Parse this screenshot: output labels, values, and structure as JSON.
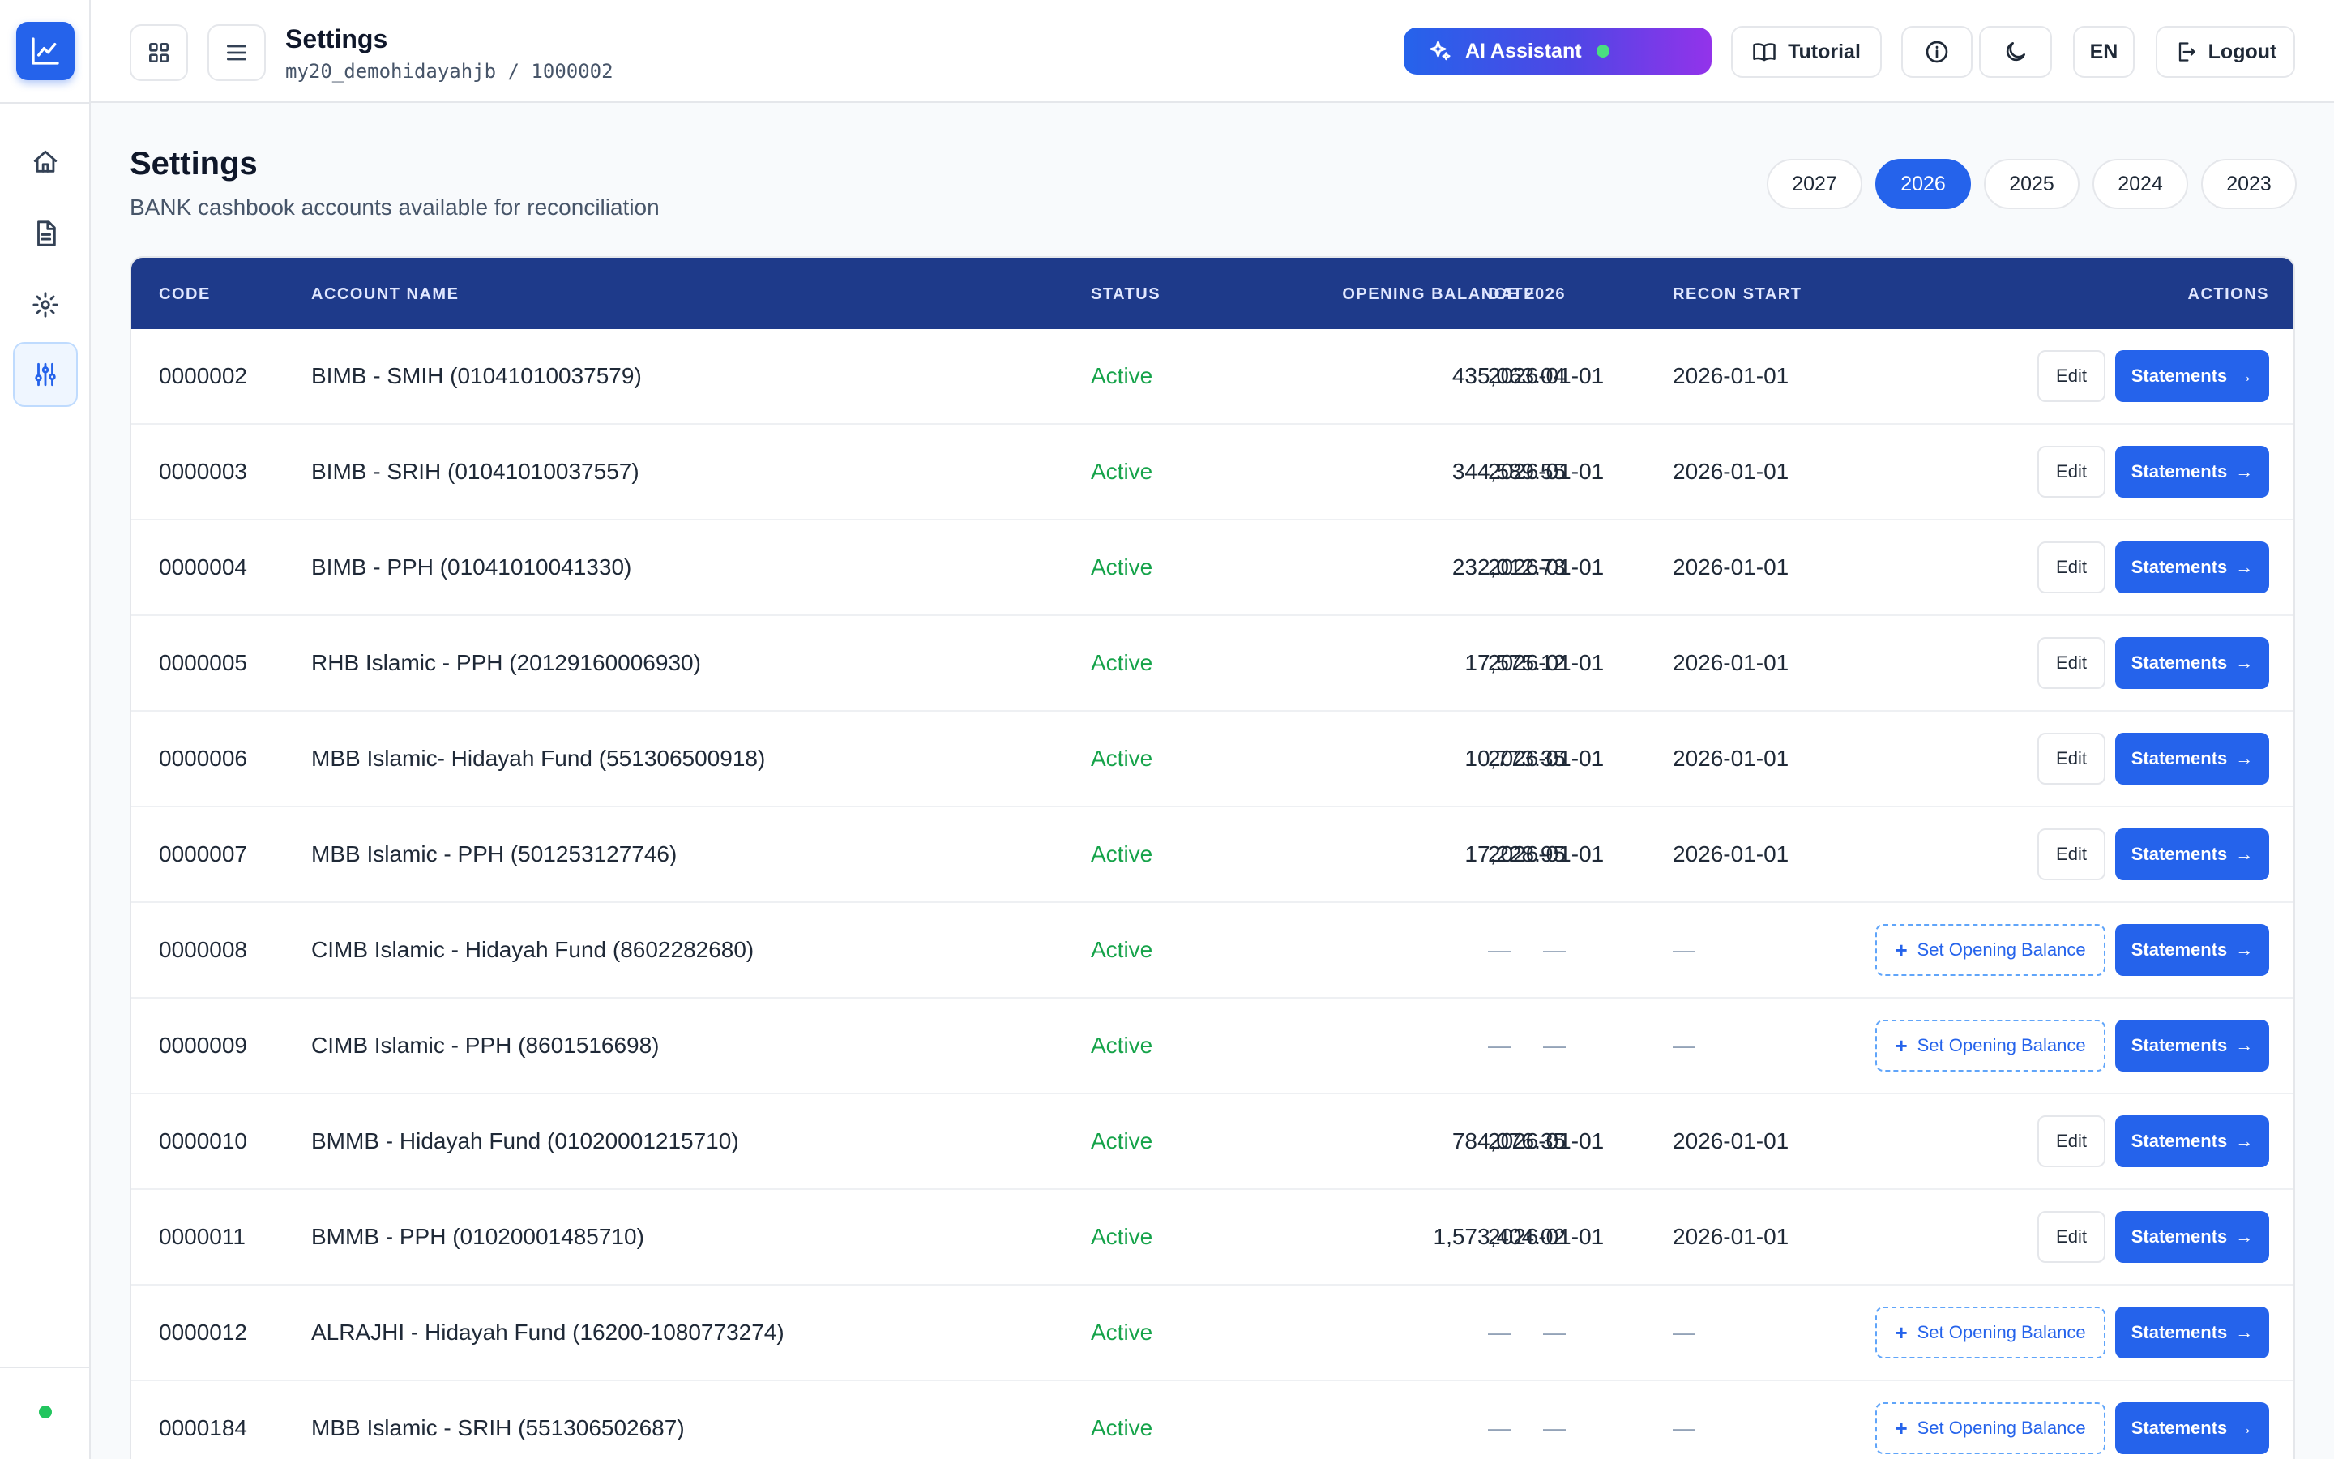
{
  "header": {
    "title": "Settings",
    "subtitle": "my20_demohidayahjb / 1000002",
    "ai_assistant_label": "AI Assistant",
    "tutorial_label": "Tutorial",
    "language_label": "EN",
    "logout_label": "Logout"
  },
  "page": {
    "title": "Settings",
    "subtitle": "BANK cashbook accounts available for reconciliation",
    "years": [
      "2027",
      "2026",
      "2025",
      "2024",
      "2023"
    ],
    "selected_year": "2026"
  },
  "table": {
    "columns": [
      "CODE",
      "ACCOUNT NAME",
      "STATUS",
      "OPENING BALANCE 2026",
      "DATE",
      "RECON START",
      "ACTIONS"
    ],
    "edit_label": "Edit",
    "statements_label": "Statements",
    "set_opening_label": "Set Opening Balance",
    "rows": [
      {
        "code": "0000002",
        "name": "BIMB - SMIH (01041010037579)",
        "status": "Active",
        "balance": "435,063.04",
        "date": "2026-01-01",
        "recon": "2026-01-01",
        "has_balance": true
      },
      {
        "code": "0000003",
        "name": "BIMB - SRIH (01041010037557)",
        "status": "Active",
        "balance": "344,589.55",
        "date": "2026-01-01",
        "recon": "2026-01-01",
        "has_balance": true
      },
      {
        "code": "0000004",
        "name": "BIMB - PPH (01041010041330)",
        "status": "Active",
        "balance": "232,012.73",
        "date": "2026-01-01",
        "recon": "2026-01-01",
        "has_balance": true
      },
      {
        "code": "0000005",
        "name": "RHB Islamic - PPH (20129160006930)",
        "status": "Active",
        "balance": "17,575.12",
        "date": "2026-01-01",
        "recon": "2026-01-01",
        "has_balance": true
      },
      {
        "code": "0000006",
        "name": "MBB Islamic- Hidayah Fund (551306500918)",
        "status": "Active",
        "balance": "10,773.35",
        "date": "2026-01-01",
        "recon": "2026-01-01",
        "has_balance": true
      },
      {
        "code": "0000007",
        "name": "MBB Islamic - PPH (501253127746)",
        "status": "Active",
        "balance": "17,228.95",
        "date": "2026-01-01",
        "recon": "2026-01-01",
        "has_balance": true
      },
      {
        "code": "0000008",
        "name": "CIMB Islamic - Hidayah Fund (8602282680)",
        "status": "Active",
        "balance": "—",
        "date": "—",
        "recon": "—",
        "has_balance": false
      },
      {
        "code": "0000009",
        "name": "CIMB Islamic - PPH (8601516698)",
        "status": "Active",
        "balance": "—",
        "date": "—",
        "recon": "—",
        "has_balance": false
      },
      {
        "code": "0000010",
        "name": "BMMB - Hidayah Fund (01020001215710)",
        "status": "Active",
        "balance": "784,076.35",
        "date": "2026-01-01",
        "recon": "2026-01-01",
        "has_balance": true
      },
      {
        "code": "0000011",
        "name": "BMMB - PPH (01020001485710)",
        "status": "Active",
        "balance": "1,573,404.02",
        "date": "2026-01-01",
        "recon": "2026-01-01",
        "has_balance": true
      },
      {
        "code": "0000012",
        "name": "ALRAJHI - Hidayah Fund (16200-1080773274)",
        "status": "Active",
        "balance": "—",
        "date": "—",
        "recon": "—",
        "has_balance": false
      },
      {
        "code": "0000184",
        "name": "MBB Islamic - SRIH (551306502687)",
        "status": "Active",
        "balance": "—",
        "date": "—",
        "recon": "—",
        "has_balance": false
      }
    ]
  },
  "icons": {
    "logo": "chart-line-icon",
    "sidebar": [
      "home-icon",
      "document-icon",
      "gear-icon",
      "sliders-icon"
    ]
  },
  "colors": {
    "accent": "#2563eb",
    "table_header": "#1e3a8a",
    "status_active": "#16a34a"
  }
}
